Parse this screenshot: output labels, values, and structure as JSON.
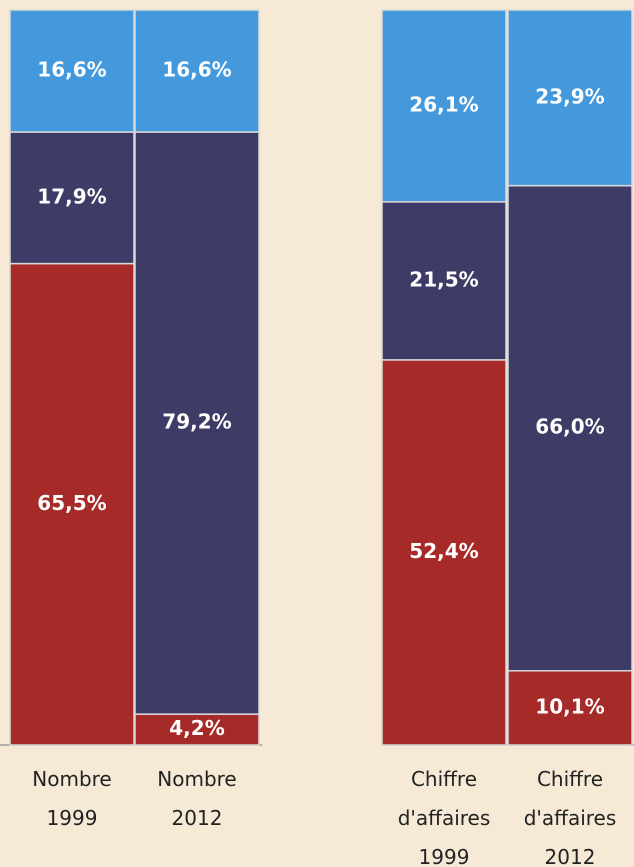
{
  "chart_data": {
    "type": "bar",
    "stacked": true,
    "title": "",
    "xlabel": "",
    "ylabel": "",
    "ylim": [
      0,
      100
    ],
    "grid": false,
    "legend": "none",
    "categories": [
      {
        "lines": [
          "Nombre",
          "1999"
        ]
      },
      {
        "lines": [
          "Nombre",
          "2012"
        ]
      },
      {
        "lines": [
          "Chiffre",
          "d'affaires",
          "1999"
        ]
      },
      {
        "lines": [
          "Chiffre",
          "d'affaires",
          "2012"
        ]
      }
    ],
    "series": [
      {
        "color": "#a62a27",
        "values": [
          65.5,
          4.2,
          52.4,
          10.1
        ],
        "labels": [
          "65,5%",
          "4,2%",
          "52,4%",
          "10,1%"
        ]
      },
      {
        "color": "#3e3b66",
        "values": [
          17.9,
          79.2,
          21.5,
          66.0
        ],
        "labels": [
          "17,9%",
          "79,2%",
          "21,5%",
          "66,0%"
        ]
      },
      {
        "color": "#4499dc",
        "values": [
          16.6,
          16.6,
          26.1,
          23.9
        ],
        "labels": [
          "16,6%",
          "16,6%",
          "26,1%",
          "23,9%"
        ]
      }
    ]
  }
}
